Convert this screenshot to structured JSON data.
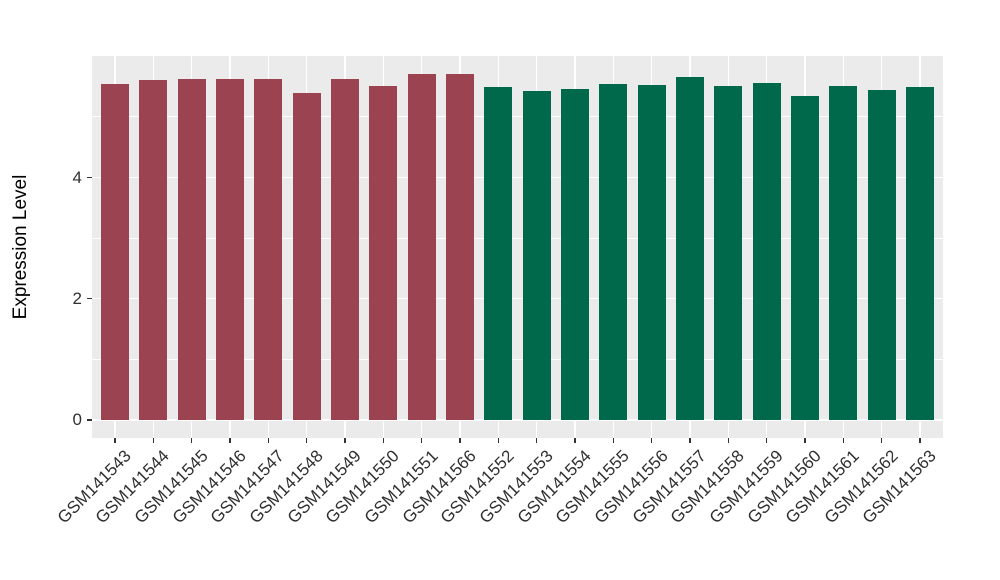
{
  "chart_data": {
    "type": "bar",
    "title": "",
    "xlabel": "",
    "ylabel": "Expression Level",
    "ylim": [
      0,
      6
    ],
    "yticks": [
      0,
      2,
      4
    ],
    "yminorticks": [
      1,
      3,
      5
    ],
    "ytick_labels": [
      "0",
      "2",
      "4"
    ],
    "legend": false,
    "grid": true,
    "panel_background": "#EBEBEB",
    "gridline_color": "#FFFFFF",
    "tick_mark_color": "#333333",
    "tick_label_color": "#303030",
    "group_colors": {
      "maroon": "#9C4351",
      "green": "#00694B"
    },
    "categories": [
      "GSM141543",
      "GSM141544",
      "GSM141545",
      "GSM141546",
      "GSM141547",
      "GSM141548",
      "GSM141549",
      "GSM141550",
      "GSM141551",
      "GSM141566",
      "GSM141552",
      "GSM141553",
      "GSM141554",
      "GSM141555",
      "GSM141556",
      "GSM141557",
      "GSM141558",
      "GSM141559",
      "GSM141560",
      "GSM141561",
      "GSM141562",
      "GSM141563"
    ],
    "values": [
      5.53,
      5.6,
      5.62,
      5.62,
      5.62,
      5.39,
      5.62,
      5.5,
      5.7,
      5.7,
      5.49,
      5.42,
      5.46,
      5.53,
      5.52,
      5.65,
      5.51,
      5.55,
      5.34,
      5.5,
      5.44,
      5.49
    ],
    "groups": [
      "maroon",
      "maroon",
      "maroon",
      "maroon",
      "maroon",
      "maroon",
      "maroon",
      "maroon",
      "maroon",
      "maroon",
      "green",
      "green",
      "green",
      "green",
      "green",
      "green",
      "green",
      "green",
      "green",
      "green",
      "green",
      "green"
    ]
  }
}
